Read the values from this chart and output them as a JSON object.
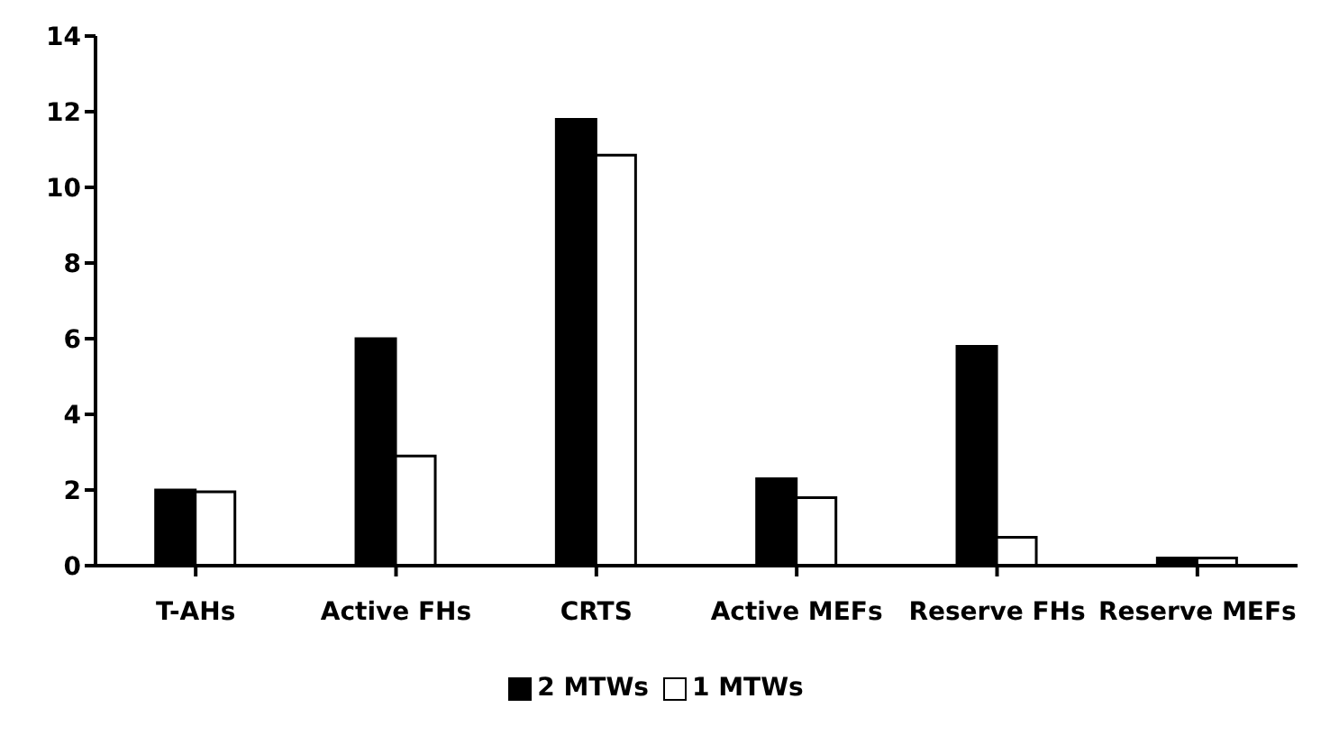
{
  "chart_data": {
    "type": "bar",
    "categories": [
      "T-AHs",
      "Active FHs",
      "CRTS",
      "Active MEFs",
      "Reserve FHs",
      "Reserve MEFs"
    ],
    "series": [
      {
        "name": "2 MTWs",
        "color": "#000000",
        "values": [
          2.0,
          6.0,
          11.8,
          2.3,
          5.8,
          0.2
        ]
      },
      {
        "name": "1 MTWs",
        "color": "#ffffff",
        "values": [
          1.95,
          2.9,
          10.85,
          1.8,
          0.75,
          0.2
        ]
      }
    ],
    "ylim": [
      0,
      14
    ],
    "yticks": [
      0,
      2,
      4,
      6,
      8,
      10,
      12,
      14
    ],
    "grid": false,
    "legend": "bottom"
  }
}
